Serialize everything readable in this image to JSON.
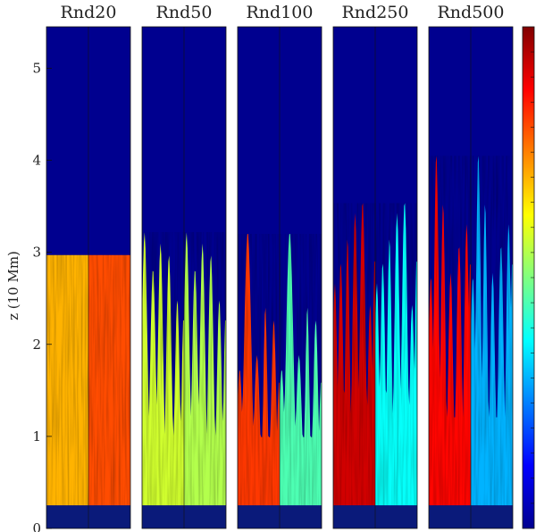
{
  "chart_data": {
    "type": "heatmap",
    "title": "",
    "ylabel": "z (10 Mm)",
    "ylim": [
      0,
      5.45
    ],
    "yticks": [
      0,
      1,
      2,
      3,
      4,
      5
    ],
    "colormap": "jet",
    "colorbar": {
      "placement": "right",
      "tick_labels": []
    },
    "background_color": "#00008f",
    "panels": [
      {
        "label": "Rnd20",
        "front_z": 2.97,
        "front_shape": "flat",
        "left_level": 0.7,
        "right_level": 0.8
      },
      {
        "label": "Rnd50",
        "front_z": 3.28,
        "front_shape": "plumes",
        "left_level": 0.58,
        "right_level": 0.55
      },
      {
        "label": "Rnd100",
        "front_z": 3.22,
        "front_shape": "plumes",
        "left_level": 0.82,
        "right_level": 0.45
      },
      {
        "label": "Rnd250",
        "front_z": 3.56,
        "front_shape": "plumes",
        "left_level": 0.92,
        "right_level": 0.38
      },
      {
        "label": "Rnd500",
        "front_z": 4.08,
        "front_shape": "plumes",
        "left_level": 0.87,
        "right_level": 0.3
      }
    ]
  }
}
